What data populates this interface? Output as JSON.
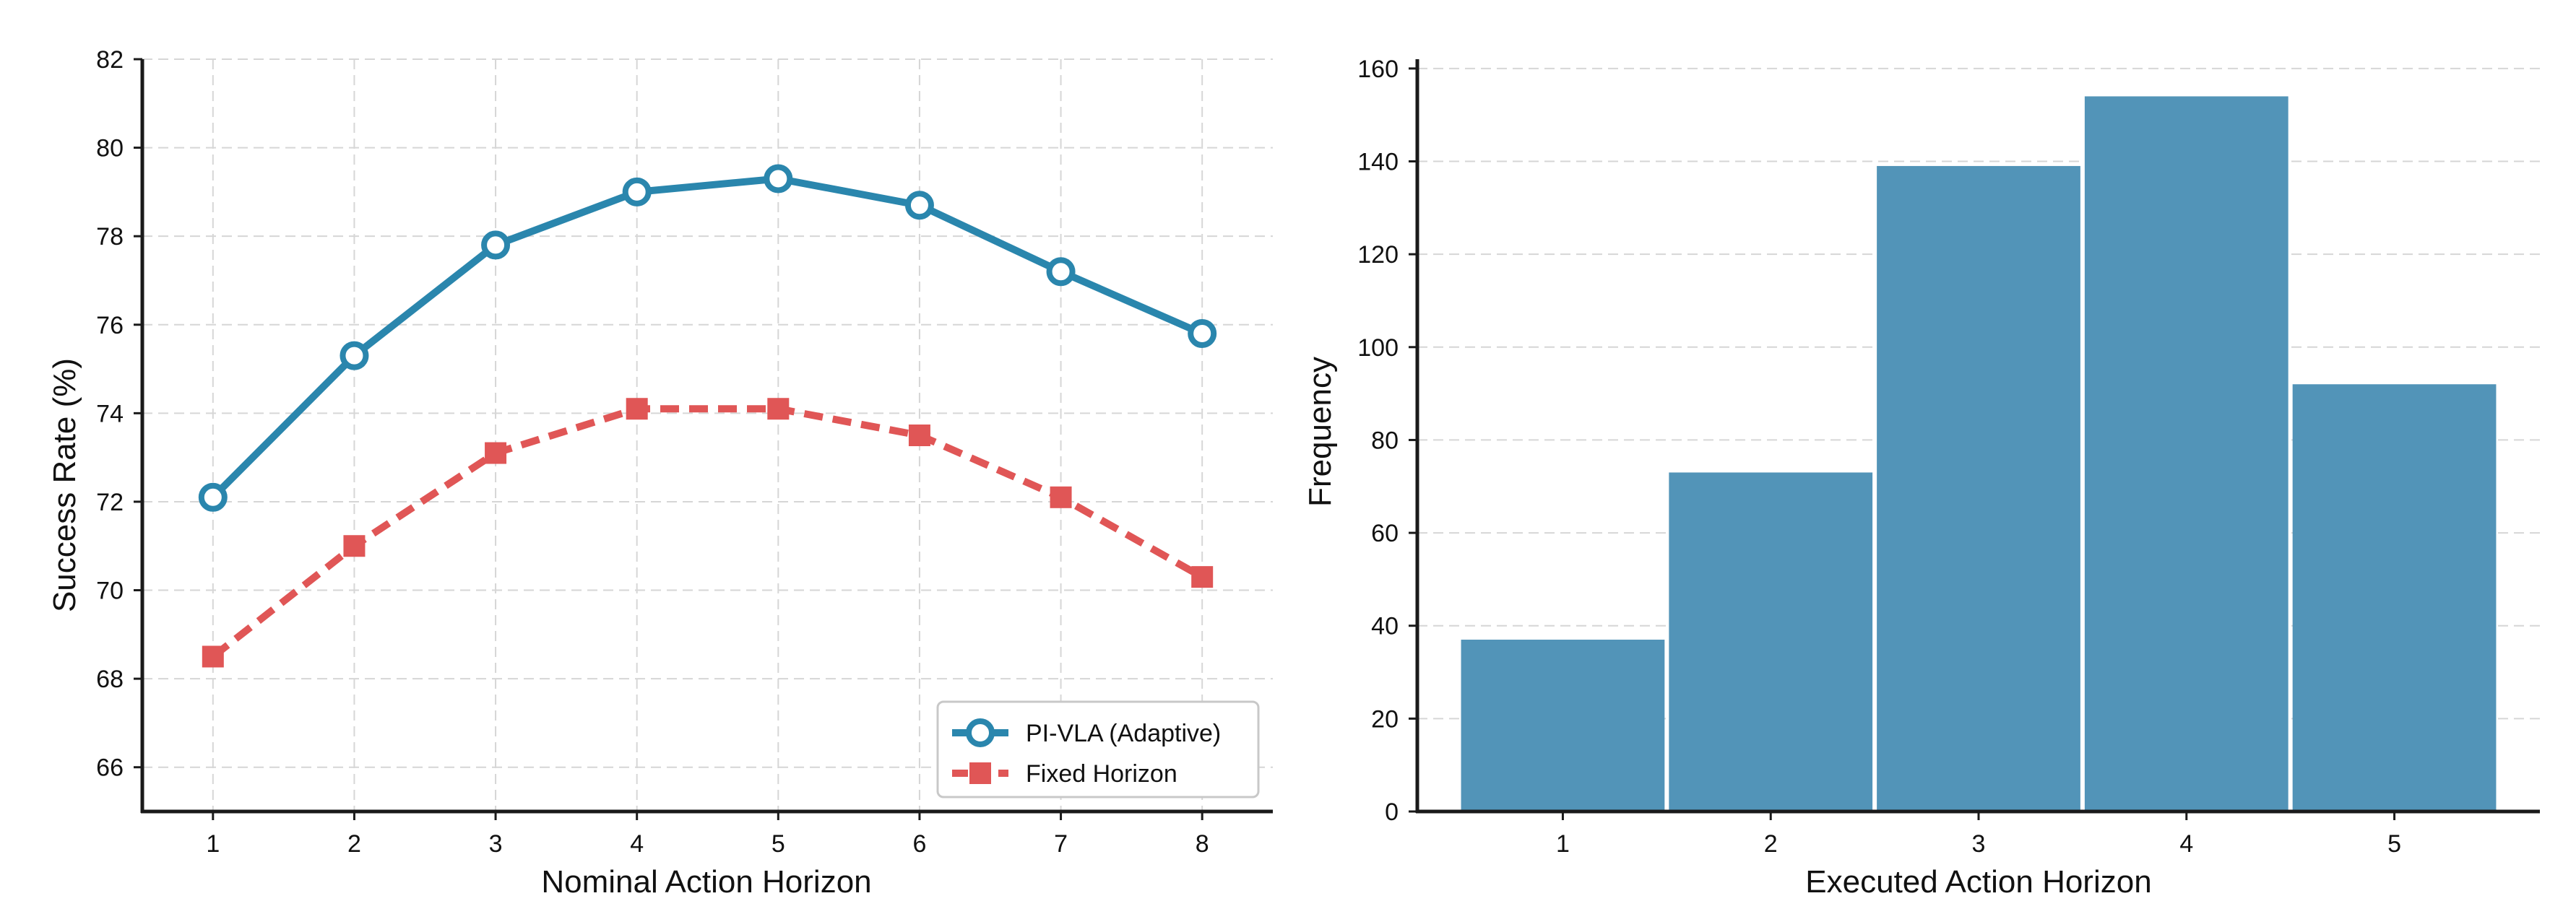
{
  "chart_data": [
    {
      "type": "line",
      "title": "",
      "xlabel": "Nominal Action Horizon",
      "ylabel": "Success Rate (%)",
      "x": [
        1,
        2,
        3,
        4,
        5,
        6,
        7,
        8
      ],
      "xlim": [
        0.5,
        8.5
      ],
      "ylim": [
        65,
        82
      ],
      "xticks": [
        "1",
        "2",
        "3",
        "4",
        "5",
        "6",
        "7",
        "8"
      ],
      "yticks": [
        "66",
        "68",
        "70",
        "72",
        "74",
        "76",
        "78",
        "80",
        "82"
      ],
      "grid": true,
      "legend_position": "lower-right",
      "series": [
        {
          "name": "PI-VLA (Adaptive)",
          "values": [
            72.1,
            75.3,
            77.8,
            79.0,
            79.3,
            78.7,
            77.2,
            75.8
          ],
          "color": "#2a86ad",
          "style": "solid",
          "marker": "open-circle"
        },
        {
          "name": "Fixed Horizon",
          "values": [
            68.5,
            71.0,
            73.1,
            74.1,
            74.1,
            73.5,
            72.1,
            70.3
          ],
          "color": "#e05656",
          "style": "dashed",
          "marker": "square"
        }
      ]
    },
    {
      "type": "bar",
      "title": "",
      "xlabel": "Executed Action Horizon",
      "ylabel": "Frequency",
      "categories": [
        "1",
        "2",
        "3",
        "4",
        "5"
      ],
      "values": [
        37,
        73,
        139,
        154,
        92
      ],
      "ylim": [
        0,
        162
      ],
      "yticks": [
        "0",
        "20",
        "40",
        "60",
        "80",
        "100",
        "120",
        "140",
        "160"
      ],
      "grid": true,
      "color": "#5294b8"
    }
  ]
}
